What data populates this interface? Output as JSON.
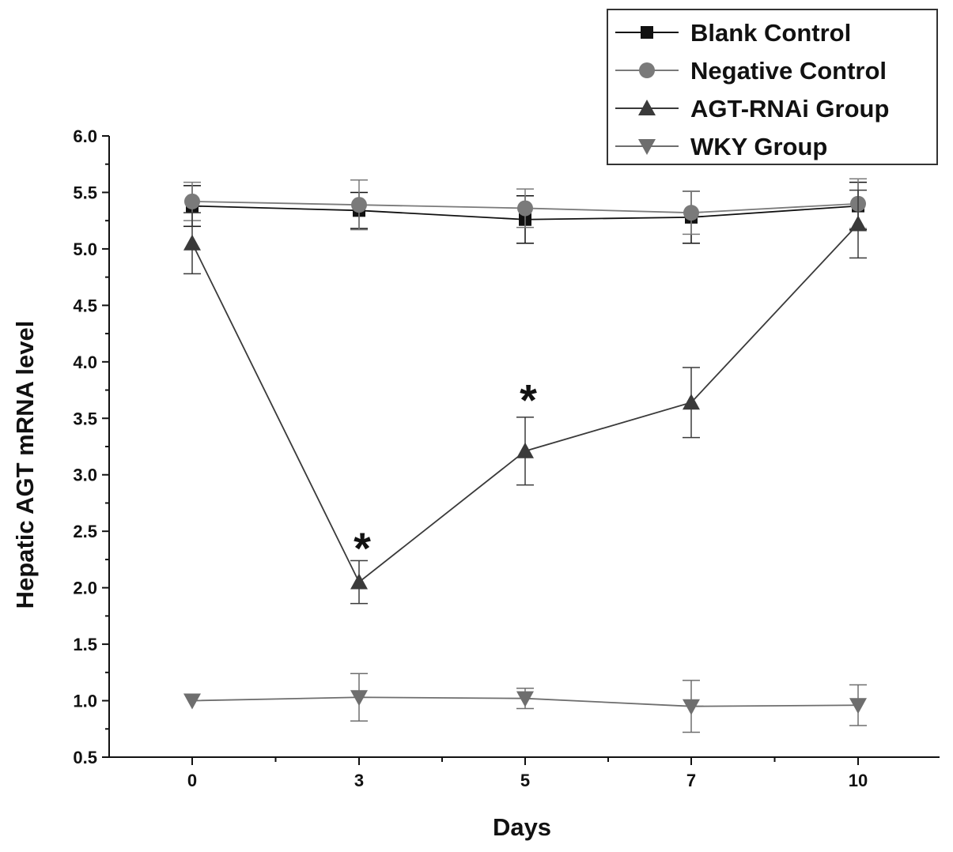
{
  "chart_data": {
    "type": "line",
    "title": "",
    "xlabel": "Days",
    "ylabel": "Hepatic AGT mRNA level",
    "x": [
      0,
      3,
      5,
      7,
      10
    ],
    "x_tick_labels": [
      "0",
      "3",
      "5",
      "7",
      "10"
    ],
    "ylim": [
      0.5,
      6.0
    ],
    "y_tick_labels": [
      "0.5",
      "1.0",
      "1.5",
      "2.0",
      "2.5",
      "3.0",
      "3.5",
      "4.0",
      "4.5",
      "5.0",
      "5.5",
      "6.0"
    ],
    "grid": false,
    "legend_position": "top-right",
    "series": [
      {
        "name": "Blank Control",
        "marker": "square",
        "color": "#111111",
        "values": [
          5.38,
          5.34,
          5.26,
          5.28,
          5.38
        ],
        "error": [
          0.18,
          0.16,
          0.21,
          0.23,
          0.21
        ]
      },
      {
        "name": "Negative Control",
        "marker": "circle",
        "color": "#7a7a7a",
        "values": [
          5.42,
          5.39,
          5.36,
          5.32,
          5.4
        ],
        "error": [
          0.17,
          0.22,
          0.17,
          0.19,
          0.22
        ]
      },
      {
        "name": "AGT-RNAi Group",
        "marker": "triangle-up",
        "color": "#3a3a3a",
        "values": [
          5.05,
          2.05,
          3.21,
          3.64,
          5.22
        ],
        "error": [
          0.27,
          0.19,
          0.3,
          0.31,
          0.3
        ]
      },
      {
        "name": "WKY Group",
        "marker": "triangle-down",
        "color": "#6e6e6e",
        "values": [
          1.0,
          1.03,
          1.02,
          0.95,
          0.96
        ],
        "error": [
          0.0,
          0.21,
          0.09,
          0.23,
          0.18
        ]
      }
    ],
    "annotations": [
      {
        "text": "*",
        "x": 3,
        "y": 2.37
      },
      {
        "text": "*",
        "x": 5,
        "y": 3.68
      }
    ]
  }
}
